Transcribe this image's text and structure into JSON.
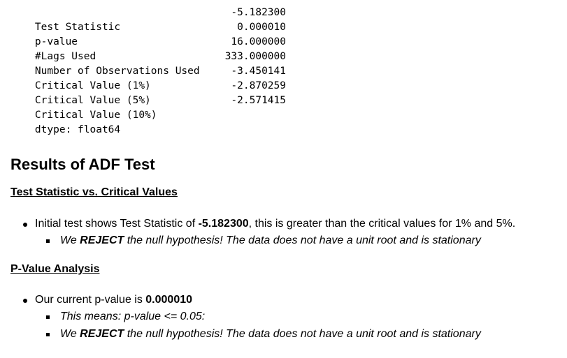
{
  "adf_output": {
    "rows": [
      {
        "key": "Test Statistic",
        "value": "-5.182300"
      },
      {
        "key": "p-value",
        "value": "0.000010"
      },
      {
        "key": "#Lags Used",
        "value": "16.000000"
      },
      {
        "key": "Number of Observations Used",
        "value": "333.000000"
      },
      {
        "key": "Critical Value (1%)",
        "value": "-3.450141"
      },
      {
        "key": "Critical Value (5%)",
        "value": "-2.870259"
      },
      {
        "key": "Critical Value (10%)",
        "value": "-2.571415"
      }
    ],
    "dtype_line": "dtype: float64"
  },
  "results": {
    "heading": "Results of ADF Test",
    "section1": {
      "heading": "Test Statistic vs. Critical Values",
      "bullet_prefix": "Initial test shows Test Statistic of ",
      "bullet_value": "-5.182300",
      "bullet_suffix": ", this is greater than the critical values for 1% and 5%.",
      "sub_pre": "We ",
      "sub_strong": "REJECT",
      "sub_post": " the null hypothesis! The data does not have a unit root and is stationary"
    },
    "section2": {
      "heading": "P-Value Analysis",
      "bullet_prefix": "Our current p-value is ",
      "bullet_value": "0.000010",
      "sub1": "This means: p-value <= 0.05:",
      "sub2_pre": "We ",
      "sub2_strong": "REJECT",
      "sub2_post": " the null hypothesis! The data does not have a unit root and is stationary"
    }
  }
}
